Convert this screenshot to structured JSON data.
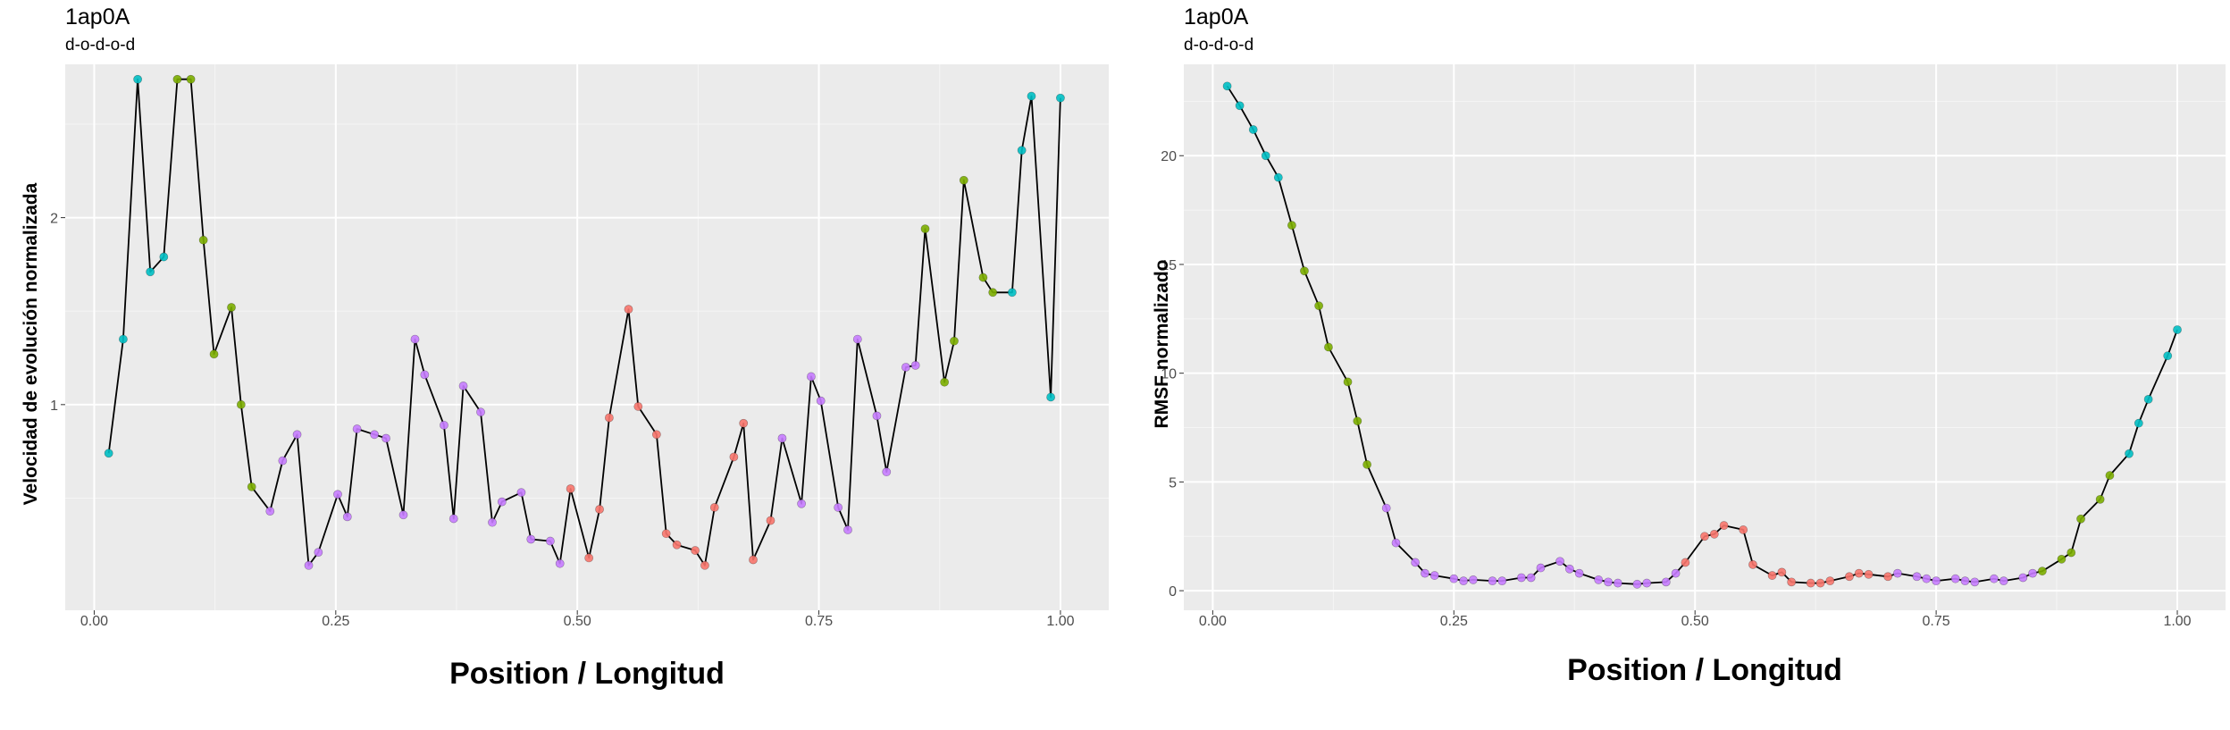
{
  "colors": {
    "panel_bg": "#ebebeb",
    "grid_major": "#ffffff",
    "line": "#000000",
    "d": "#00bfc4",
    "o_green": "#7cae00",
    "o_purple": "#c77cff",
    "red": "#f8766d"
  },
  "chart_data": [
    {
      "type": "line",
      "title": "1ap0A",
      "subtitle": "d-o-d-o-d",
      "xlabel": "Position / Longitud",
      "ylabel": "Velocidad de evolución normalizada",
      "xlim": [
        -0.03,
        1.05
      ],
      "ylim": [
        -0.1,
        2.82
      ],
      "x_ticks": [
        0,
        0.25,
        0.5,
        0.75,
        1
      ],
      "x_tick_labels": [
        "0.00",
        "0.25",
        "0.50",
        "0.75",
        "1.00"
      ],
      "y_ticks": [
        1,
        2
      ],
      "y_tick_labels": [
        "1",
        "2"
      ],
      "grid": true,
      "points": [
        [
          0.015,
          0.74,
          "d"
        ],
        [
          0.03,
          1.35,
          "d"
        ],
        [
          0.045,
          2.74,
          "d"
        ],
        [
          0.058,
          1.71,
          "d"
        ],
        [
          0.072,
          1.79,
          "d"
        ],
        [
          0.086,
          2.74,
          "o_green"
        ],
        [
          0.1,
          2.74,
          "o_green"
        ],
        [
          0.113,
          1.88,
          "o_green"
        ],
        [
          0.124,
          1.27,
          "o_green"
        ],
        [
          0.142,
          1.52,
          "o_green"
        ],
        [
          0.152,
          1.0,
          "o_green"
        ],
        [
          0.163,
          0.56,
          "o_green"
        ],
        [
          0.182,
          0.43,
          "o_purple"
        ],
        [
          0.195,
          0.7,
          "o_purple"
        ],
        [
          0.21,
          0.84,
          "o_purple"
        ],
        [
          0.222,
          0.14,
          "o_purple"
        ],
        [
          0.232,
          0.21,
          "o_purple"
        ],
        [
          0.252,
          0.52,
          "o_purple"
        ],
        [
          0.262,
          0.4,
          "o_purple"
        ],
        [
          0.272,
          0.87,
          "o_purple"
        ],
        [
          0.29,
          0.84,
          "o_purple"
        ],
        [
          0.302,
          0.82,
          "o_purple"
        ],
        [
          0.32,
          0.41,
          "o_purple"
        ],
        [
          0.332,
          1.35,
          "o_purple"
        ],
        [
          0.342,
          1.16,
          "o_purple"
        ],
        [
          0.362,
          0.89,
          "o_purple"
        ],
        [
          0.372,
          0.39,
          "o_purple"
        ],
        [
          0.382,
          1.1,
          "o_purple"
        ],
        [
          0.4,
          0.96,
          "o_purple"
        ],
        [
          0.412,
          0.37,
          "o_purple"
        ],
        [
          0.422,
          0.48,
          "o_purple"
        ],
        [
          0.442,
          0.53,
          "o_purple"
        ],
        [
          0.452,
          0.28,
          "o_purple"
        ],
        [
          0.472,
          0.27,
          "o_purple"
        ],
        [
          0.482,
          0.15,
          "o_purple"
        ],
        [
          0.493,
          0.55,
          "red"
        ],
        [
          0.512,
          0.18,
          "red"
        ],
        [
          0.523,
          0.44,
          "red"
        ],
        [
          0.533,
          0.93,
          "red"
        ],
        [
          0.553,
          1.51,
          "red"
        ],
        [
          0.563,
          0.99,
          "red"
        ],
        [
          0.582,
          0.84,
          "red"
        ],
        [
          0.592,
          0.31,
          "red"
        ],
        [
          0.603,
          0.25,
          "red"
        ],
        [
          0.622,
          0.22,
          "red"
        ],
        [
          0.632,
          0.14,
          "red"
        ],
        [
          0.642,
          0.45,
          "red"
        ],
        [
          0.662,
          0.72,
          "red"
        ],
        [
          0.672,
          0.9,
          "red"
        ],
        [
          0.682,
          0.17,
          "red"
        ],
        [
          0.7,
          0.38,
          "red"
        ],
        [
          0.712,
          0.82,
          "o_purple"
        ],
        [
          0.732,
          0.47,
          "o_purple"
        ],
        [
          0.742,
          1.15,
          "o_purple"
        ],
        [
          0.752,
          1.02,
          "o_purple"
        ],
        [
          0.77,
          0.45,
          "o_purple"
        ],
        [
          0.78,
          0.33,
          "o_purple"
        ],
        [
          0.79,
          1.35,
          "o_purple"
        ],
        [
          0.81,
          0.94,
          "o_purple"
        ],
        [
          0.82,
          0.64,
          "o_purple"
        ],
        [
          0.84,
          1.2,
          "o_purple"
        ],
        [
          0.85,
          1.21,
          "o_purple"
        ],
        [
          0.86,
          1.94,
          "o_green"
        ],
        [
          0.88,
          1.12,
          "o_green"
        ],
        [
          0.89,
          1.34,
          "o_green"
        ],
        [
          0.9,
          2.2,
          "o_green"
        ],
        [
          0.92,
          1.68,
          "o_green"
        ],
        [
          0.93,
          1.6,
          "o_green"
        ],
        [
          0.95,
          1.6,
          "d"
        ],
        [
          0.96,
          2.36,
          "d"
        ],
        [
          0.97,
          2.65,
          "d"
        ],
        [
          0.99,
          1.04,
          "d"
        ],
        [
          1.0,
          2.64,
          "d"
        ]
      ]
    },
    {
      "type": "line",
      "title": "1ap0A",
      "subtitle": "d-o-d-o-d",
      "xlabel": "Position / Longitud",
      "ylabel": "RMSF normalizado",
      "xlim": [
        -0.03,
        1.05
      ],
      "ylim": [
        -0.9,
        24.2
      ],
      "x_ticks": [
        0,
        0.25,
        0.5,
        0.75,
        1
      ],
      "x_tick_labels": [
        "0.00",
        "0.25",
        "0.50",
        "0.75",
        "1.00"
      ],
      "y_ticks": [
        0,
        5,
        10,
        15,
        20
      ],
      "y_tick_labels": [
        "0",
        "5",
        "10",
        "15",
        "20"
      ],
      "grid": true,
      "points": [
        [
          0.015,
          23.2,
          "d"
        ],
        [
          0.028,
          22.3,
          "d"
        ],
        [
          0.042,
          21.2,
          "d"
        ],
        [
          0.055,
          20.0,
          "d"
        ],
        [
          0.068,
          19.0,
          "d"
        ],
        [
          0.082,
          16.8,
          "o_green"
        ],
        [
          0.095,
          14.7,
          "o_green"
        ],
        [
          0.11,
          13.1,
          "o_green"
        ],
        [
          0.12,
          11.2,
          "o_green"
        ],
        [
          0.14,
          9.6,
          "o_green"
        ],
        [
          0.15,
          7.8,
          "o_green"
        ],
        [
          0.16,
          5.8,
          "o_green"
        ],
        [
          0.18,
          3.8,
          "o_purple"
        ],
        [
          0.19,
          2.2,
          "o_purple"
        ],
        [
          0.21,
          1.3,
          "o_purple"
        ],
        [
          0.22,
          0.8,
          "o_purple"
        ],
        [
          0.23,
          0.7,
          "o_purple"
        ],
        [
          0.25,
          0.55,
          "o_purple"
        ],
        [
          0.26,
          0.45,
          "o_purple"
        ],
        [
          0.27,
          0.5,
          "o_purple"
        ],
        [
          0.29,
          0.45,
          "o_purple"
        ],
        [
          0.3,
          0.45,
          "o_purple"
        ],
        [
          0.32,
          0.6,
          "o_purple"
        ],
        [
          0.33,
          0.6,
          "o_purple"
        ],
        [
          0.34,
          1.05,
          "o_purple"
        ],
        [
          0.36,
          1.35,
          "o_purple"
        ],
        [
          0.37,
          1.0,
          "o_purple"
        ],
        [
          0.38,
          0.8,
          "o_purple"
        ],
        [
          0.4,
          0.5,
          "o_purple"
        ],
        [
          0.41,
          0.4,
          "o_purple"
        ],
        [
          0.42,
          0.35,
          "o_purple"
        ],
        [
          0.44,
          0.3,
          "o_purple"
        ],
        [
          0.45,
          0.35,
          "o_purple"
        ],
        [
          0.47,
          0.4,
          "o_purple"
        ],
        [
          0.48,
          0.8,
          "o_purple"
        ],
        [
          0.49,
          1.3,
          "red"
        ],
        [
          0.51,
          2.5,
          "red"
        ],
        [
          0.52,
          2.6,
          "red"
        ],
        [
          0.53,
          3.0,
          "red"
        ],
        [
          0.55,
          2.8,
          "red"
        ],
        [
          0.56,
          1.2,
          "red"
        ],
        [
          0.58,
          0.7,
          "red"
        ],
        [
          0.59,
          0.85,
          "red"
        ],
        [
          0.6,
          0.4,
          "red"
        ],
        [
          0.62,
          0.35,
          "red"
        ],
        [
          0.63,
          0.35,
          "red"
        ],
        [
          0.64,
          0.45,
          "red"
        ],
        [
          0.66,
          0.65,
          "red"
        ],
        [
          0.67,
          0.8,
          "red"
        ],
        [
          0.68,
          0.75,
          "red"
        ],
        [
          0.7,
          0.65,
          "red"
        ],
        [
          0.71,
          0.8,
          "o_purple"
        ],
        [
          0.73,
          0.65,
          "o_purple"
        ],
        [
          0.74,
          0.55,
          "o_purple"
        ],
        [
          0.75,
          0.45,
          "o_purple"
        ],
        [
          0.77,
          0.55,
          "o_purple"
        ],
        [
          0.78,
          0.45,
          "o_purple"
        ],
        [
          0.79,
          0.4,
          "o_purple"
        ],
        [
          0.81,
          0.55,
          "o_purple"
        ],
        [
          0.82,
          0.45,
          "o_purple"
        ],
        [
          0.84,
          0.6,
          "o_purple"
        ],
        [
          0.85,
          0.8,
          "o_purple"
        ],
        [
          0.86,
          0.9,
          "o_green"
        ],
        [
          0.88,
          1.45,
          "o_green"
        ],
        [
          0.89,
          1.75,
          "o_green"
        ],
        [
          0.9,
          3.3,
          "o_green"
        ],
        [
          0.92,
          4.2,
          "o_green"
        ],
        [
          0.93,
          5.3,
          "o_green"
        ],
        [
          0.95,
          6.3,
          "d"
        ],
        [
          0.96,
          7.7,
          "d"
        ],
        [
          0.97,
          8.8,
          "d"
        ],
        [
          0.99,
          10.8,
          "d"
        ],
        [
          1.0,
          12.0,
          "d"
        ]
      ]
    }
  ]
}
